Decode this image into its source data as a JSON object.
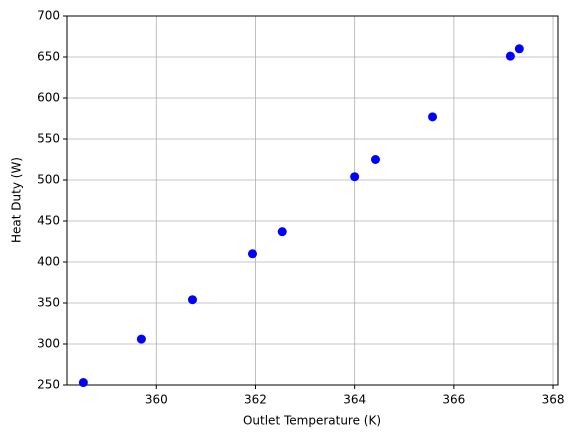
{
  "chart_data": {
    "type": "scatter",
    "x_label": "Outlet Temperature (K)",
    "y_label": "Heat Duty (W)",
    "x": [
      358.53,
      359.7,
      360.73,
      361.94,
      362.54,
      364.0,
      364.42,
      365.57,
      367.14,
      367.32
    ],
    "values": [
      253,
      306,
      354,
      410,
      437,
      504,
      525,
      577,
      651,
      660
    ],
    "color": "#0000ff",
    "xlim": [
      358.2,
      368.1
    ],
    "ylim": [
      250,
      700
    ],
    "xticks": [
      360,
      362,
      364,
      366,
      368
    ],
    "yticks": [
      250,
      300,
      350,
      400,
      450,
      500,
      550,
      600,
      650,
      700
    ],
    "grid": true
  }
}
